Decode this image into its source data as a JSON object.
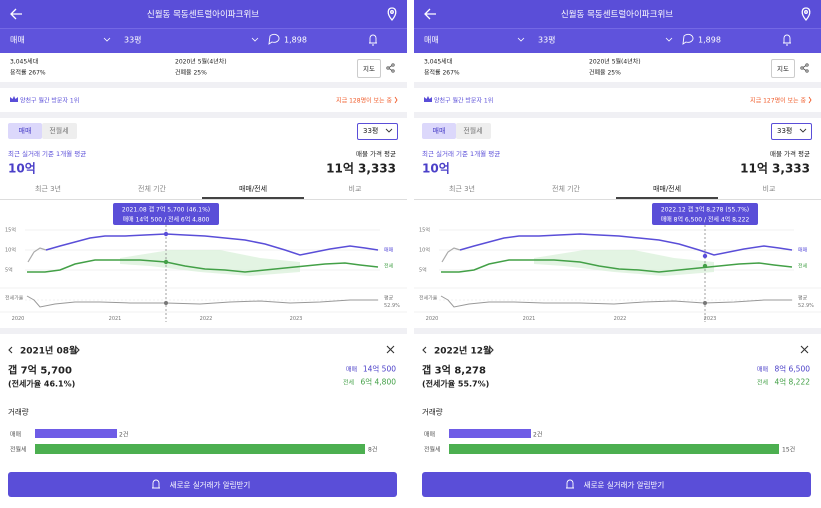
{
  "panels": [
    {
      "header": {
        "title": "신월동 목동센트럴아이파크위브"
      },
      "filters": {
        "trade_type": "매매",
        "size": "33평",
        "comments": "1,898"
      },
      "info": {
        "households": "3,045세대",
        "floor_area_ratio": "용적률 267%",
        "built": "2020년 5월(4년차)",
        "coverage_ratio": "건폐율 25%",
        "map_button": "지도"
      },
      "banner": {
        "rank": "양천구 월간 방문자 1위",
        "viewers": "지금 128명이 보는 중"
      },
      "deal_tabs": [
        "매매",
        "전월세"
      ],
      "size_select": "33평",
      "summary": {
        "recent_label": "최근 실거래 기준 1개월 평균",
        "recent_value": "10억",
        "listing_label": "매물 가격 평균",
        "listing_value": "11억 3,333"
      },
      "period_tabs": [
        "최근 3년",
        "전체 기간",
        "매매/전세",
        "비교"
      ],
      "chart": {
        "tooltip": [
          "2021.08 갭 7억 5,700 (46.1%)",
          "매매 14억 500 / 전세 6억 4,800"
        ],
        "y_labels": [
          "15억",
          "10억",
          "5억",
          "전세가율"
        ],
        "series_labels": [
          "매매",
          "전세"
        ],
        "avg_label": "평균",
        "avg_value": "52.9%",
        "x_labels": [
          "2020",
          "2021",
          "2022",
          "2023"
        ]
      },
      "detail": {
        "period": "2021년 08월",
        "gap": "갭 7억 5,700",
        "ratio": "(전세가율 46.1%)",
        "sale_label": "매매",
        "sale_value": "14억 500",
        "jeonse_label": "전세",
        "jeonse_value": "6억 4,800"
      },
      "volume": {
        "title": "거래량",
        "rows": [
          {
            "label": "매매",
            "count": "2건"
          },
          {
            "label": "전월세",
            "count": "8건"
          }
        ]
      },
      "cta": "새로운 실거래가 알림받기"
    },
    {
      "header": {
        "title": "신월동 목동센트럴아이파크위브"
      },
      "filters": {
        "trade_type": "매매",
        "size": "33평",
        "comments": "1,898"
      },
      "info": {
        "households": "3,045세대",
        "floor_area_ratio": "용적률 267%",
        "built": "2020년 5월(4년차)",
        "coverage_ratio": "건폐율 25%",
        "map_button": "지도"
      },
      "banner": {
        "rank": "양천구 월간 방문자 1위",
        "viewers": "지금 127명이 보는 중"
      },
      "deal_tabs": [
        "매매",
        "전월세"
      ],
      "size_select": "33평",
      "summary": {
        "recent_label": "최근 실거래 기준 1개월 평균",
        "recent_value": "10억",
        "listing_label": "매물 가격 평균",
        "listing_value": "11억 3,333"
      },
      "period_tabs": [
        "최근 3년",
        "전체 기간",
        "매매/전세",
        "비교"
      ],
      "chart": {
        "tooltip": [
          "2022.12 갭 3억 8,278 (55.7%)",
          "매매 8억 6,500 / 전세 4억 8,222"
        ],
        "y_labels": [
          "15억",
          "10억",
          "5억",
          "전세가율"
        ],
        "series_labels": [
          "매매",
          "전세"
        ],
        "avg_label": "평균",
        "avg_value": "52.9%",
        "x_labels": [
          "2020",
          "2021",
          "2022",
          "2023"
        ]
      },
      "detail": {
        "period": "2022년 12월",
        "gap": "갭 3억 8,278",
        "ratio": "(전세가율 55.7%)",
        "sale_label": "매매",
        "sale_value": "8억 6,500",
        "jeonse_label": "전세",
        "jeonse_value": "4억 8,222"
      },
      "volume": {
        "title": "거래량",
        "rows": [
          {
            "label": "매매",
            "count": "2건"
          },
          {
            "label": "전월세",
            "count": "15건"
          }
        ]
      },
      "cta": "새로운 실거래가 알림받기"
    }
  ]
}
